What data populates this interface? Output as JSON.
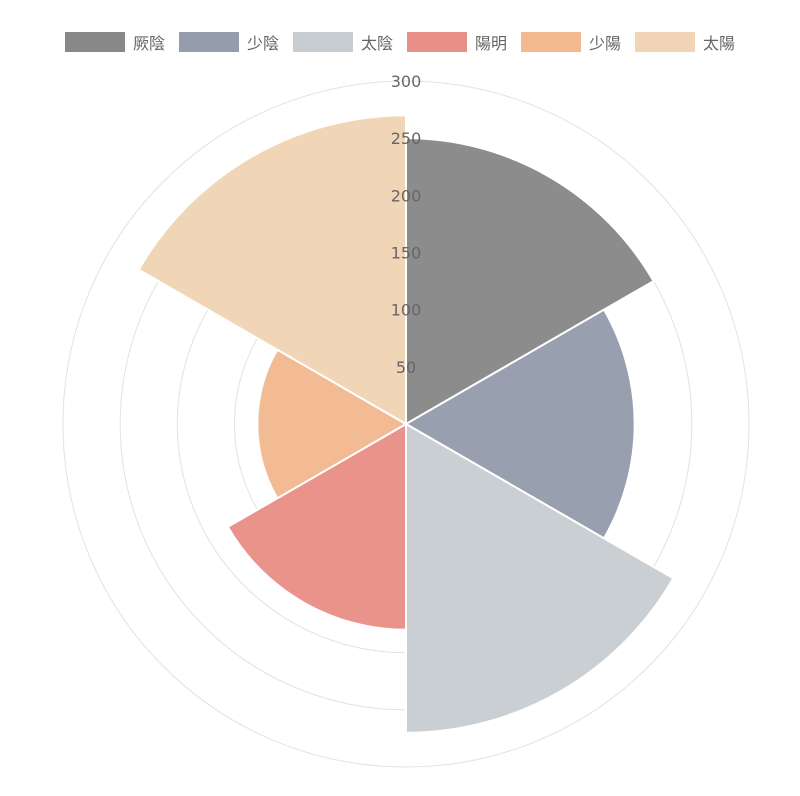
{
  "chart_data": {
    "type": "polarArea",
    "title": "",
    "categories": [
      "厥陰",
      "少陰",
      "太陰",
      "陽明",
      "少陽",
      "太陽"
    ],
    "values": [
      250,
      200,
      270,
      180,
      130,
      270
    ],
    "colors": [
      "#888888",
      "#959cab",
      "#c8cdd2",
      "#e88f87",
      "#f3b98f",
      "#f1d4b5"
    ],
    "r_range": [
      0,
      300
    ],
    "r_ticks": [
      50,
      100,
      150,
      200,
      250,
      300
    ],
    "grid": true,
    "legend_position": "top"
  }
}
